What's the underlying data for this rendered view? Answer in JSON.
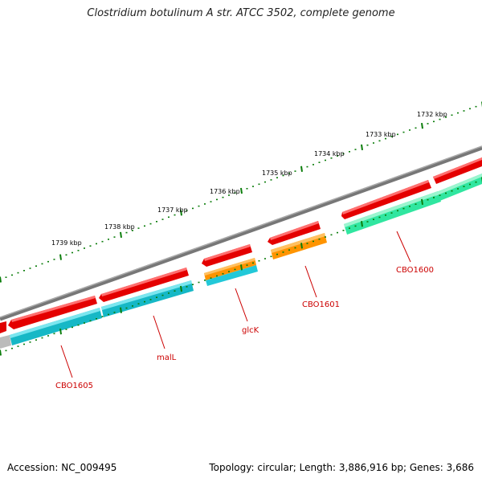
{
  "map": {
    "title": "Clostridium botulinum A str. ATCC 3502, complete genome",
    "accession": "Accession: NC_009495",
    "summary": "Topology: circular; Length: 3,886,916 bp; Genes: 3,686"
  },
  "ticks": [
    "1732 kbp",
    "1733 kbp",
    "1734 kbp",
    "1735 kbp",
    "1736 kbp",
    "1737 kbp",
    "1738 kbp",
    "1739 kbp"
  ],
  "genes": [
    {
      "label": "CBO1600",
      "color": "#33e6a0"
    },
    {
      "label": "CBO1601",
      "color": "#ff9400"
    },
    {
      "label": "glcK",
      "color": "#22c8d8"
    },
    {
      "label": "malL",
      "color": "#22c8d8"
    },
    {
      "label": "CBO1605",
      "color": "#22c8d8"
    }
  ],
  "colors": {
    "forward_strand_gene": "#ee0000",
    "backbone": "#888888",
    "tick": "#0b7d0b",
    "label": "#cc0000"
  }
}
